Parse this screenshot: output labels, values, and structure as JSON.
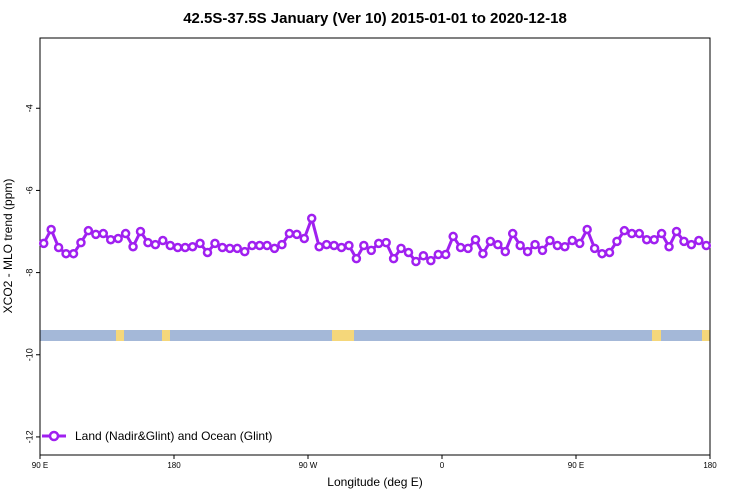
{
  "chart_data": {
    "type": "line",
    "title": "42.5S-37.5S January (Ver 10)   2015-01-01 to 2020-12-18",
    "xlabel": "Longitude (deg E)",
    "ylabel": "XCO2 - MLO trend (ppm)",
    "xlim": [
      90,
      540
    ],
    "ylim": [
      -12.44,
      -2.29
    ],
    "xticks": [
      {
        "value": 90,
        "label": "90 E"
      },
      {
        "value": 180,
        "label": "180"
      },
      {
        "value": 270,
        "label": "90 W"
      },
      {
        "value": 360,
        "label": "0"
      },
      {
        "value": 450,
        "label": "90 E"
      },
      {
        "value": 540,
        "label": "180"
      }
    ],
    "yticks": [
      -4,
      -6,
      -8,
      -10,
      -12
    ],
    "legend": "lower left",
    "x": [
      92.5,
      97.5,
      102.5,
      107.5,
      112.5,
      117.5,
      122.5,
      127.5,
      132.5,
      137.5,
      142.5,
      147.5,
      152.5,
      157.5,
      162.5,
      167.5,
      172.5,
      177.5,
      182.5,
      187.5,
      192.5,
      197.5,
      202.5,
      207.5,
      212.5,
      217.5,
      222.5,
      227.5,
      232.5,
      237.5,
      242.5,
      247.5,
      252.5,
      257.5,
      262.5,
      267.5,
      272.5,
      277.5,
      282.5,
      287.5,
      292.5,
      297.5,
      302.5,
      307.5,
      312.5,
      317.5,
      322.5,
      327.5,
      332.5,
      337.5,
      342.5,
      347.5,
      352.5,
      357.5,
      362.5,
      367.5,
      372.5,
      377.5,
      382.5,
      387.5,
      392.5,
      397.5,
      402.5,
      407.5,
      412.5,
      417.5,
      422.5,
      427.5,
      432.5,
      437.5,
      442.5,
      447.5,
      452.5,
      457.5,
      462.5,
      467.5,
      472.5,
      477.5,
      482.5,
      487.5,
      492.5,
      497.5,
      502.5,
      507.5,
      512.5,
      517.5,
      522.5,
      527.5,
      532.5,
      537.5
    ],
    "series": [
      {
        "name": "Land (Nadir&Glint) and Ocean (Glint)",
        "color": "#a020f0",
        "values": [
          -7.29,
          -6.95,
          -7.39,
          -7.54,
          -7.54,
          -7.27,
          -6.98,
          -7.07,
          -7.05,
          -7.2,
          -7.17,
          -7.05,
          -7.37,
          -7.0,
          -7.27,
          -7.32,
          -7.22,
          -7.34,
          -7.39,
          -7.39,
          -7.37,
          -7.29,
          -7.51,
          -7.29,
          -7.39,
          -7.41,
          -7.41,
          -7.49,
          -7.34,
          -7.34,
          -7.34,
          -7.41,
          -7.32,
          -7.05,
          -7.07,
          -7.17,
          -6.68,
          -7.37,
          -7.32,
          -7.34,
          -7.39,
          -7.34,
          -7.66,
          -7.34,
          -7.46,
          -7.29,
          -7.27,
          -7.66,
          -7.41,
          -7.51,
          -7.73,
          -7.59,
          -7.71,
          -7.56,
          -7.56,
          -7.12,
          -7.39,
          -7.41,
          -7.2,
          -7.54,
          -7.24,
          -7.32,
          -7.49,
          -7.05,
          -7.34,
          -7.49,
          -7.32,
          -7.46,
          -7.22,
          -7.34,
          -7.37,
          -7.22,
          -7.29,
          -6.95,
          -7.41,
          -7.54,
          -7.51,
          -7.24,
          -6.98,
          -7.05,
          -7.05,
          -7.2,
          -7.2,
          -7.05,
          -7.37,
          -7.0,
          -7.24,
          -7.32,
          -7.22,
          -7.34
        ]
      }
    ]
  }
}
